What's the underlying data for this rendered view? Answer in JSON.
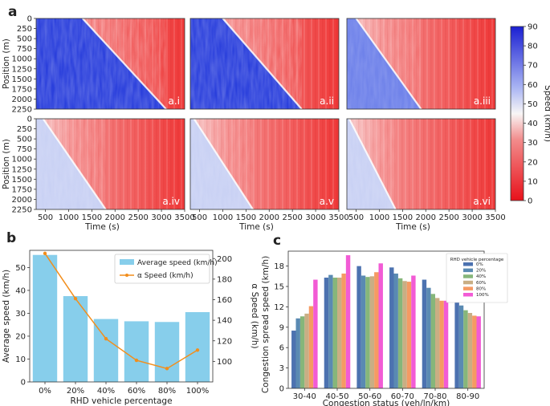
{
  "chart_data": [
    {
      "type": "heatmap",
      "panel": "a",
      "xlabel": "Time (s)",
      "ylabel": "Position (m)",
      "x_ticks": [
        "500",
        "1000",
        "1500",
        "2000",
        "2500",
        "3000",
        "3500"
      ],
      "y_ticks": [
        "0",
        "250",
        "500",
        "750",
        "1000",
        "1250",
        "1500",
        "1750",
        "2000",
        "2250"
      ],
      "colorbar": {
        "label": "Speed (km/h)",
        "range": [
          0,
          90
        ],
        "ticks": [
          "0",
          "10",
          "20",
          "30",
          "40",
          "50",
          "60",
          "70",
          "80",
          "90"
        ]
      },
      "subplots": [
        {
          "label": "a.i",
          "front_time_at_top": 1300,
          "front_time_at_bottom": 3100
        },
        {
          "label": "a.ii",
          "front_time_at_top": 1000,
          "front_time_at_bottom": 2700
        },
        {
          "label": "a.iii",
          "front_time_at_top": 500,
          "front_time_at_bottom": 1900
        },
        {
          "label": "a.iv",
          "front_time_at_top": 450,
          "front_time_at_bottom": 1800
        },
        {
          "label": "a.v",
          "front_time_at_top": 380,
          "front_time_at_bottom": 1650
        },
        {
          "label": "a.vi",
          "front_time_at_top": 350,
          "front_time_at_bottom": 1350
        }
      ]
    },
    {
      "type": "bar",
      "panel": "b",
      "categories": [
        "0%",
        "20%",
        "40%",
        "60%",
        "80%",
        "100%"
      ],
      "series": [
        {
          "name": "Average speed (km/h)",
          "axis": "left",
          "values": [
            55.5,
            37.5,
            27.5,
            26.5,
            26.2,
            30.5
          ]
        },
        {
          "name": "α Speed (km/h)",
          "axis": "right",
          "type": "line",
          "values": [
            205,
            161,
            122,
            101,
            93,
            111
          ]
        }
      ],
      "xlabel": "RHD vehicle percentage",
      "ylabel": "Average speed (km/h)",
      "y2label": "α Speed (km/h)",
      "ylim": [
        0,
        57.5
      ],
      "y2lim": [
        80,
        208
      ],
      "y_ticks": [
        "0",
        "10",
        "20",
        "30",
        "40",
        "50"
      ],
      "y2_ticks": [
        "100",
        "120",
        "140",
        "160",
        "180",
        "200"
      ],
      "legend": "top-right"
    },
    {
      "type": "bar",
      "panel": "c",
      "categories": [
        "30-40",
        "40-50",
        "50-60",
        "60-70",
        "70-80",
        "80-90"
      ],
      "series": [
        {
          "name": "0%",
          "color": "#4c72b0",
          "values": [
            8.5,
            16.3,
            18.0,
            17.8,
            16.0,
            13.0
          ]
        },
        {
          "name": "20%",
          "color": "#5a8ab2",
          "values": [
            10.3,
            16.7,
            16.6,
            16.9,
            14.8,
            12.2
          ]
        },
        {
          "name": "40%",
          "color": "#86b67a",
          "values": [
            10.6,
            16.3,
            16.4,
            16.2,
            13.9,
            11.5
          ]
        },
        {
          "name": "60%",
          "color": "#c9ae84",
          "values": [
            11.0,
            16.3,
            16.5,
            15.8,
            13.3,
            11.1
          ]
        },
        {
          "name": "80%",
          "color": "#f59a63",
          "values": [
            12.1,
            16.9,
            17.1,
            15.7,
            12.9,
            10.7
          ]
        },
        {
          "name": "100%",
          "color": "#f25bd5",
          "values": [
            16.0,
            19.6,
            18.4,
            16.6,
            12.9,
            10.6
          ]
        }
      ],
      "xlabel": "Congestion status (veh/ln/km)",
      "ylabel": "Congestion spread speed (km/h)",
      "ylim": [
        0,
        20.2
      ],
      "y_ticks": [
        "0",
        "3",
        "6",
        "9",
        "12",
        "15",
        "18"
      ],
      "legend_title": "RHD vehicle percentage",
      "legend": "top-right"
    }
  ]
}
